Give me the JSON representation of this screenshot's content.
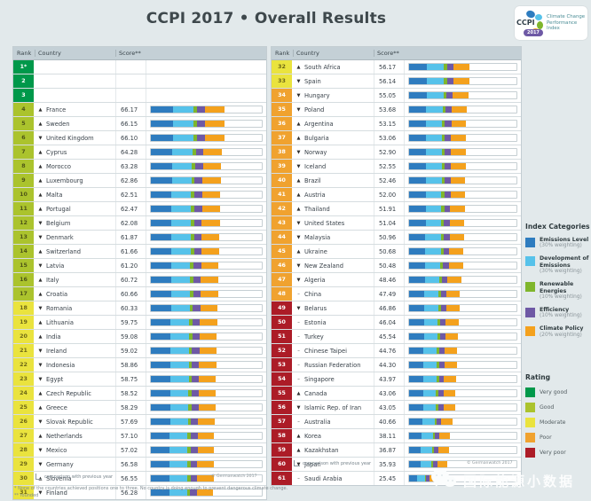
{
  "header": {
    "title": "CCPI 2017 • Overall Results",
    "logo": {
      "abbr": "CCPI",
      "year": "2017",
      "caption_lines": [
        "Climate Change",
        "Performance",
        "Index"
      ]
    }
  },
  "table": {
    "headers": {
      "rank": "Rank",
      "country": "Country",
      "score": "Score**"
    },
    "trend_symbols": {
      "up": "▲",
      "down": "▼",
      "same": "–"
    }
  },
  "chart_data": {
    "type": "bar",
    "subtype": "horizontal-stacked-ranking",
    "title": "CCPI 2017 • Overall Results",
    "score_axis_range": [
      0,
      100
    ],
    "segment_fractions": [
      0.3,
      0.28,
      0.05,
      0.11,
      0.26
    ],
    "categories": [
      {
        "key": "emissions-level",
        "name": "Emissions Level",
        "weight": "(30% weighting)",
        "color": "#2e7cbf"
      },
      {
        "key": "development-of-emissions",
        "name": "Development of Emissions",
        "weight": "(30% weighting)",
        "color": "#56c2ea"
      },
      {
        "key": "renewable-energies",
        "name": "Renewable Energies",
        "weight": "(10% weighting)",
        "color": "#7fb62c"
      },
      {
        "key": "efficiency",
        "name": "Efficiency",
        "weight": "(10% weighting)",
        "color": "#6e59a5"
      },
      {
        "key": "climate-policy",
        "name": "Climate Policy",
        "weight": "(20% weighting)",
        "color": "#f4a11d"
      }
    ],
    "rating_levels": [
      {
        "key": "very-good",
        "label": "Very good",
        "color": "#00984a"
      },
      {
        "key": "good",
        "label": "Good",
        "color": "#abc32d"
      },
      {
        "key": "moderate",
        "label": "Moderate",
        "color": "#eae33e"
      },
      {
        "key": "poor",
        "label": "Poor",
        "color": "#f0a22f"
      },
      {
        "key": "very-poor",
        "label": "Very poor",
        "color": "#ac1c27"
      }
    ],
    "rows": [
      {
        "rank": "1*",
        "trend": null,
        "country": "",
        "score": null,
        "rating": "very-good"
      },
      {
        "rank": "2",
        "trend": null,
        "country": "",
        "score": null,
        "rating": "very-good"
      },
      {
        "rank": "3",
        "trend": null,
        "country": "",
        "score": null,
        "rating": "very-good"
      },
      {
        "rank": "4",
        "trend": "up",
        "country": "France",
        "score": "66.17",
        "rating": "good"
      },
      {
        "rank": "5",
        "trend": "up",
        "country": "Sweden",
        "score": "66.15",
        "rating": "good"
      },
      {
        "rank": "6",
        "trend": "down",
        "country": "United Kingdom",
        "score": "66.10",
        "rating": "good"
      },
      {
        "rank": "7",
        "trend": "up",
        "country": "Cyprus",
        "score": "64.28",
        "rating": "good"
      },
      {
        "rank": "8",
        "trend": "up",
        "country": "Morocco",
        "score": "63.28",
        "rating": "good"
      },
      {
        "rank": "9",
        "trend": "up",
        "country": "Luxembourg",
        "score": "62.86",
        "rating": "good"
      },
      {
        "rank": "10",
        "trend": "up",
        "country": "Malta",
        "score": "62.51",
        "rating": "good"
      },
      {
        "rank": "11",
        "trend": "up",
        "country": "Portugal",
        "score": "62.47",
        "rating": "good"
      },
      {
        "rank": "12",
        "trend": "down",
        "country": "Belgium",
        "score": "62.08",
        "rating": "good"
      },
      {
        "rank": "13",
        "trend": "down",
        "country": "Denmark",
        "score": "61.87",
        "rating": "good"
      },
      {
        "rank": "14",
        "trend": "up",
        "country": "Switzerland",
        "score": "61.66",
        "rating": "good"
      },
      {
        "rank": "15",
        "trend": "down",
        "country": "Latvia",
        "score": "61.20",
        "rating": "good"
      },
      {
        "rank": "16",
        "trend": "up",
        "country": "Italy",
        "score": "60.72",
        "rating": "good"
      },
      {
        "rank": "17",
        "trend": "up",
        "country": "Croatia",
        "score": "60.66",
        "rating": "good"
      },
      {
        "rank": "18",
        "trend": "down",
        "country": "Romania",
        "score": "60.33",
        "rating": "moderate"
      },
      {
        "rank": "19",
        "trend": "up",
        "country": "Lithuania",
        "score": "59.75",
        "rating": "moderate"
      },
      {
        "rank": "20",
        "trend": "up",
        "country": "India",
        "score": "59.08",
        "rating": "moderate"
      },
      {
        "rank": "21",
        "trend": "down",
        "country": "Ireland",
        "score": "59.02",
        "rating": "moderate"
      },
      {
        "rank": "22",
        "trend": "down",
        "country": "Indonesia",
        "score": "58.86",
        "rating": "moderate"
      },
      {
        "rank": "23",
        "trend": "down",
        "country": "Egypt",
        "score": "58.75",
        "rating": "moderate"
      },
      {
        "rank": "24",
        "trend": "up",
        "country": "Czech Republic",
        "score": "58.52",
        "rating": "moderate"
      },
      {
        "rank": "25",
        "trend": "up",
        "country": "Greece",
        "score": "58.29",
        "rating": "moderate"
      },
      {
        "rank": "26",
        "trend": "down",
        "country": "Slovak Republic",
        "score": "57.69",
        "rating": "moderate"
      },
      {
        "rank": "27",
        "trend": "up",
        "country": "Netherlands",
        "score": "57.10",
        "rating": "moderate"
      },
      {
        "rank": "28",
        "trend": "down",
        "country": "Mexico",
        "score": "57.02",
        "rating": "moderate"
      },
      {
        "rank": "29",
        "trend": "down",
        "country": "Germany",
        "score": "56.58",
        "rating": "moderate"
      },
      {
        "rank": "30",
        "trend": "up",
        "country": "Slovenia",
        "score": "56.55",
        "rating": "moderate"
      },
      {
        "rank": "31",
        "trend": "down",
        "country": "Finland",
        "score": "56.28",
        "rating": "moderate"
      },
      {
        "rank": "32",
        "trend": "up",
        "country": "South Africa",
        "score": "56.17",
        "rating": "moderate"
      },
      {
        "rank": "33",
        "trend": "down",
        "country": "Spain",
        "score": "56.14",
        "rating": "moderate"
      },
      {
        "rank": "34",
        "trend": "down",
        "country": "Hungary",
        "score": "55.05",
        "rating": "poor"
      },
      {
        "rank": "35",
        "trend": "down",
        "country": "Poland",
        "score": "53.68",
        "rating": "poor"
      },
      {
        "rank": "36",
        "trend": "up",
        "country": "Argentina",
        "score": "53.15",
        "rating": "poor"
      },
      {
        "rank": "37",
        "trend": "up",
        "country": "Bulgaria",
        "score": "53.06",
        "rating": "poor"
      },
      {
        "rank": "38",
        "trend": "down",
        "country": "Norway",
        "score": "52.90",
        "rating": "poor"
      },
      {
        "rank": "39",
        "trend": "down",
        "country": "Iceland",
        "score": "52.55",
        "rating": "poor"
      },
      {
        "rank": "40",
        "trend": "up",
        "country": "Brazil",
        "score": "52.46",
        "rating": "poor"
      },
      {
        "rank": "41",
        "trend": "up",
        "country": "Austria",
        "score": "52.00",
        "rating": "poor"
      },
      {
        "rank": "42",
        "trend": "up",
        "country": "Thailand",
        "score": "51.91",
        "rating": "poor"
      },
      {
        "rank": "43",
        "trend": "down",
        "country": "United States",
        "score": "51.04",
        "rating": "poor"
      },
      {
        "rank": "44",
        "trend": "down",
        "country": "Malaysia",
        "score": "50.96",
        "rating": "poor"
      },
      {
        "rank": "45",
        "trend": "up",
        "country": "Ukraine",
        "score": "50.68",
        "rating": "poor"
      },
      {
        "rank": "46",
        "trend": "down",
        "country": "New Zealand",
        "score": "50.48",
        "rating": "poor"
      },
      {
        "rank": "47",
        "trend": "down",
        "country": "Algeria",
        "score": "48.46",
        "rating": "poor"
      },
      {
        "rank": "48",
        "trend": "same",
        "country": "China",
        "score": "47.49",
        "rating": "poor"
      },
      {
        "rank": "49",
        "trend": "down",
        "country": "Belarus",
        "score": "46.86",
        "rating": "very-poor"
      },
      {
        "rank": "50",
        "trend": "same",
        "country": "Estonia",
        "score": "46.04",
        "rating": "very-poor"
      },
      {
        "rank": "51",
        "trend": "same",
        "country": "Turkey",
        "score": "45.54",
        "rating": "very-poor"
      },
      {
        "rank": "52",
        "trend": "same",
        "country": "Chinese Taipei",
        "score": "44.76",
        "rating": "very-poor"
      },
      {
        "rank": "53",
        "trend": "same",
        "country": "Russian Federation",
        "score": "44.30",
        "rating": "very-poor"
      },
      {
        "rank": "54",
        "trend": "same",
        "country": "Singapore",
        "score": "43.97",
        "rating": "very-poor"
      },
      {
        "rank": "55",
        "trend": "up",
        "country": "Canada",
        "score": "43.06",
        "rating": "very-poor"
      },
      {
        "rank": "56",
        "trend": "down",
        "country": "Islamic Rep. of Iran",
        "score": "43.05",
        "rating": "very-poor"
      },
      {
        "rank": "57",
        "trend": "same",
        "country": "Australia",
        "score": "40.66",
        "rating": "very-poor"
      },
      {
        "rank": "58",
        "trend": "up",
        "country": "Korea",
        "score": "38.11",
        "rating": "very-poor"
      },
      {
        "rank": "59",
        "trend": "up",
        "country": "Kazakhstan",
        "score": "36.87",
        "rating": "very-poor"
      },
      {
        "rank": "60",
        "trend": "down",
        "country": "Japan",
        "score": "35.93",
        "rating": "very-poor"
      },
      {
        "rank": "61",
        "trend": "same",
        "country": "Saudi Arabia",
        "score": "25.45",
        "rating": "very-poor"
      }
    ]
  },
  "legend": {
    "categories_title": "Index Categories",
    "rating_title": "Rating"
  },
  "footnotes": {
    "comparison": "comparison with previous year",
    "copyright": "© Germanwatch 2017",
    "line1": "*   None of the countries achieved positions one to three. No country is doing enough to prevent dangerous climate change.",
    "line2": "** rounded"
  },
  "watermark": {
    "text": "国际能源小数据"
  },
  "colors": {
    "page_background": "#e2e9eb",
    "table_header": "#c4d0d6",
    "bar_emissions_level": "#2e7cbf",
    "bar_development_of_emissions": "#56c2ea",
    "bar_renewable_energies": "#7fb62c",
    "bar_efficiency": "#6e59a5",
    "bar_climate_policy": "#f4a11d",
    "rating_very_good": "#00984a",
    "rating_good": "#abc32d",
    "rating_moderate": "#eae33e",
    "rating_poor": "#f0a22f",
    "rating_very_poor": "#ac1c27"
  }
}
